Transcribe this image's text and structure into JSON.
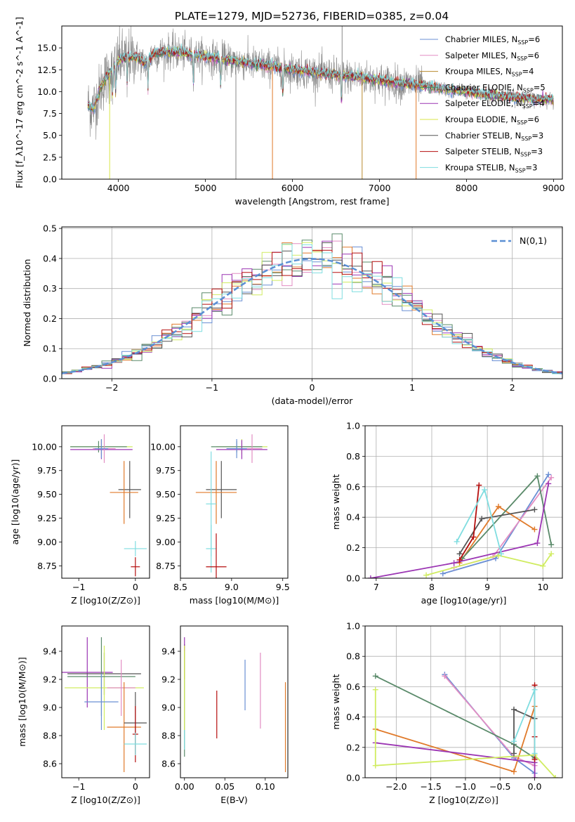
{
  "figure": {
    "title": "PLATE=1279, MJD=52736, FIBERID=0385, z=0.04"
  },
  "colors": {
    "legend_order": [
      "#6a8fd4",
      "#e28ec3",
      "#b8892e",
      "#3e8f63",
      "#9b35b3",
      "#d8e64a",
      "#555555",
      "#b50e0e",
      "#7fdde0"
    ],
    "data_grey": "#888888",
    "gauss": "#5b8fd4",
    "z_colors": [
      "#6a8fd4",
      "#e28ec3",
      "#e07a2a",
      "#5a8a6a",
      "#9b35b3",
      "#d0ec60",
      "#555555",
      "#b50e0e",
      "#7fdde0"
    ]
  },
  "chart_data": [
    {
      "id": "spectrum",
      "type": "line",
      "xlabel": "wavelength [Angstrom, rest frame]",
      "ylabel": "Flux [f_λ10^-17 erg cm^-2 s^-1 A^-1]",
      "xlim": [
        3350,
        9100
      ],
      "ylim": [
        0,
        17.5
      ],
      "xticks": [
        4000,
        5000,
        6000,
        7000,
        8000,
        9000
      ],
      "yticks": [
        0.0,
        2.5,
        5.0,
        7.5,
        10.0,
        12.5,
        15.0
      ],
      "legend_position": "top-right",
      "legend": [
        {
          "label": "Chabrier MILES, N_SSP=6",
          "color": "#6a8fd4"
        },
        {
          "label": "Salpeter MILES, N_SSP=6",
          "color": "#e28ec3"
        },
        {
          "label": "Kroupa MILES, N_SSP=4",
          "color": "#b8892e"
        },
        {
          "label": "Chabrier ELODIE, N_SSP=5",
          "color": "#3e8f63"
        },
        {
          "label": "Salpeter ELODIE, N_SSP=4",
          "color": "#9b35b3"
        },
        {
          "label": "Kroupa ELODIE, N_SSP=6",
          "color": "#d8e64a"
        },
        {
          "label": "Chabrier STELIB, N_SSP=3",
          "color": "#555555"
        },
        {
          "label": "Salpeter STELIB, N_SSP=3",
          "color": "#b50e0e"
        },
        {
          "label": "Kroupa STELIB, N_SSP=3",
          "color": "#7fdde0"
        }
      ],
      "continuum": {
        "x": [
          3650,
          3700,
          3750,
          3800,
          3850,
          3900,
          3950,
          4000,
          4100,
          4200,
          4300,
          4400,
          4600,
          4800,
          5000,
          5200,
          5400,
          5600,
          5800,
          6000,
          6200,
          6400,
          6600,
          6800,
          7000,
          7200,
          7400,
          7600,
          7800,
          8000,
          8200,
          8400,
          8600,
          8800,
          9000
        ],
        "y": [
          8.5,
          8.0,
          9.0,
          10.5,
          11.5,
          12.0,
          13.0,
          13.5,
          14.0,
          14.0,
          13.2,
          14.3,
          14.6,
          14.3,
          14.0,
          13.7,
          13.4,
          13.1,
          12.8,
          12.5,
          12.3,
          12.0,
          11.8,
          11.6,
          11.3,
          11.0,
          10.8,
          10.5,
          10.2,
          10.0,
          9.7,
          9.5,
          9.3,
          9.1,
          9.1
        ]
      },
      "spikes": [
        {
          "x": 3900,
          "y": 0.0,
          "color": "#d8e64a"
        },
        {
          "x": 5350,
          "y": 0.0,
          "color": "#888888"
        },
        {
          "x": 5770,
          "y": 0.0,
          "color": "#e07a2a"
        },
        {
          "x": 6800,
          "y": 0.0,
          "color": "#b8892e"
        },
        {
          "x": 7420,
          "y": 0.0,
          "color": "#e07a2a"
        },
        {
          "x": 6570,
          "y": 17.5,
          "color": "#888888"
        }
      ]
    },
    {
      "id": "residuals",
      "type": "histogram",
      "xlabel": "(data-model)/error",
      "ylabel": "Normed distribution",
      "xlim": [
        -2.5,
        2.5
      ],
      "ylim": [
        0,
        0.505
      ],
      "xticks": [
        -2,
        -1,
        0,
        1,
        2
      ],
      "yticks": [
        0.0,
        0.1,
        0.2,
        0.3,
        0.4,
        0.5
      ],
      "grid": true,
      "legend_position": "top-right",
      "legend": [
        {
          "label": "N(0,1)",
          "color": "#5b8fd4",
          "style": "dashed"
        }
      ],
      "bin_width": 0.1
    },
    {
      "id": "age_vs_Z",
      "type": "errorbar",
      "xlabel": "Z [log10(Z/Z⊙)]",
      "ylabel": "age  [log10(age/yr)]",
      "xlim": [
        -1.3,
        0.25
      ],
      "ylim": [
        8.62,
        10.22
      ],
      "xticks": [
        -1,
        0
      ],
      "yticks": [
        8.75,
        9.0,
        9.25,
        9.5,
        9.75,
        10.0
      ],
      "points": [
        {
          "x": -0.6,
          "y": 10.0,
          "xerr": 0.55,
          "yerr": 0.08,
          "color": "#d0ec60"
        },
        {
          "x": -0.65,
          "y": 10.0,
          "xerr": 0.5,
          "yerr": 0.06,
          "color": "#5a8a6a"
        },
        {
          "x": -0.6,
          "y": 9.97,
          "xerr": 0.55,
          "yerr": 0.1,
          "color": "#9b35b3"
        },
        {
          "x": -0.55,
          "y": 9.98,
          "xerr": 0.2,
          "yerr": 0.15,
          "color": "#e28ec3"
        },
        {
          "x": -0.1,
          "y": 9.55,
          "xerr": 0.2,
          "yerr": 0.3,
          "color": "#555555"
        },
        {
          "x": -0.2,
          "y": 9.52,
          "xerr": 0.25,
          "yerr": 0.33,
          "color": "#e07a2a"
        },
        {
          "x": -0.6,
          "y": 9.98,
          "xerr": 0.12,
          "yerr": 0.1,
          "color": "#6a8fd4"
        },
        {
          "x": 0.0,
          "y": 8.93,
          "xerr": 0.2,
          "yerr": 0.08,
          "color": "#7fdde0"
        },
        {
          "x": 0.0,
          "y": 8.74,
          "xerr": 0.08,
          "yerr": 0.1,
          "color": "#b50e0e"
        }
      ]
    },
    {
      "id": "age_vs_mass",
      "type": "errorbar",
      "xlabel": "mass [log10(M/M⊙)]",
      "ylabel": "",
      "xlim": [
        8.5,
        9.55
      ],
      "ylim": [
        8.62,
        10.22
      ],
      "xticks": [
        8.5,
        9.0,
        9.5
      ],
      "yticks": [
        8.75,
        9.0,
        9.25,
        9.5,
        9.75,
        10.0
      ],
      "points": [
        {
          "x": 9.1,
          "y": 10.0,
          "xerr": 0.25,
          "yerr": 0.08,
          "color": "#d0ec60"
        },
        {
          "x": 9.05,
          "y": 10.0,
          "xerr": 0.25,
          "yerr": 0.06,
          "color": "#5a8a6a"
        },
        {
          "x": 9.1,
          "y": 9.97,
          "xerr": 0.25,
          "yerr": 0.1,
          "color": "#9b35b3"
        },
        {
          "x": 9.2,
          "y": 9.98,
          "xerr": 0.1,
          "yerr": 0.15,
          "color": "#e28ec3"
        },
        {
          "x": 8.9,
          "y": 9.55,
          "xerr": 0.15,
          "yerr": 0.3,
          "color": "#555555"
        },
        {
          "x": 8.85,
          "y": 9.52,
          "xerr": 0.2,
          "yerr": 0.33,
          "color": "#e07a2a"
        },
        {
          "x": 9.05,
          "y": 9.98,
          "xerr": 0.1,
          "yerr": 0.1,
          "color": "#6a8fd4"
        },
        {
          "x": 8.8,
          "y": 9.4,
          "xerr": 0.05,
          "yerr": 0.55,
          "color": "#7fdde0"
        },
        {
          "x": 8.8,
          "y": 8.93,
          "xerr": 0.05,
          "yerr": 0.25,
          "color": "#7fdde0"
        },
        {
          "x": 8.85,
          "y": 8.74,
          "xerr": 0.1,
          "yerr": 0.35,
          "color": "#b50e0e"
        }
      ]
    },
    {
      "id": "mass_weight_vs_age",
      "type": "line",
      "xlabel": "age  [log10(age/yr)]",
      "ylabel": "mass weight",
      "xlim": [
        6.8,
        10.35
      ],
      "ylim": [
        0,
        1.0
      ],
      "xticks": [
        7,
        8,
        9,
        10
      ],
      "yticks": [
        0.0,
        0.2,
        0.4,
        0.6,
        0.8,
        1.0
      ],
      "grid": true,
      "series": [
        {
          "color": "#6a8fd4",
          "x": [
            8.2,
            9.15,
            10.1
          ],
          "y": [
            0.03,
            0.13,
            0.68
          ]
        },
        {
          "color": "#e28ec3",
          "x": [
            8.4,
            9.1,
            10.15
          ],
          "y": [
            0.07,
            0.14,
            0.66
          ]
        },
        {
          "color": "#e07a2a",
          "x": [
            8.5,
            9.2,
            9.85
          ],
          "y": [
            0.1,
            0.47,
            0.32
          ]
        },
        {
          "color": "#5a8a6a",
          "x": [
            8.55,
            9.9,
            10.15
          ],
          "y": [
            0.13,
            0.67,
            0.22
          ]
        },
        {
          "color": "#9b35b3",
          "x": [
            6.9,
            8.4,
            9.9,
            10.1
          ],
          "y": [
            0.0,
            0.1,
            0.23,
            0.62
          ]
        },
        {
          "color": "#d0ec60",
          "x": [
            7.9,
            9.2,
            10.0,
            10.15
          ],
          "y": [
            0.02,
            0.15,
            0.08,
            0.16
          ]
        },
        {
          "color": "#555555",
          "x": [
            8.5,
            8.9,
            9.85
          ],
          "y": [
            0.16,
            0.39,
            0.45
          ]
        },
        {
          "color": "#b50e0e",
          "x": [
            8.5,
            8.75,
            8.85
          ],
          "y": [
            0.12,
            0.27,
            0.61
          ]
        },
        {
          "color": "#7fdde0",
          "x": [
            8.45,
            8.95,
            9.25
          ],
          "y": [
            0.24,
            0.58,
            0.16
          ]
        }
      ]
    },
    {
      "id": "mass_vs_Z",
      "type": "errorbar",
      "xlabel": "Z [log10(Z/Z⊙)]",
      "ylabel": "mass [log10(M/M⊙)]",
      "xlim": [
        -1.3,
        0.25
      ],
      "ylim": [
        8.5,
        9.58
      ],
      "xticks": [
        -1,
        0
      ],
      "yticks": [
        8.6,
        8.8,
        9.0,
        9.2,
        9.4
      ],
      "points": [
        {
          "x": -0.85,
          "y": 9.25,
          "xerr": 0.45,
          "yerr": 0.25,
          "color": "#9b35b3"
        },
        {
          "x": -0.55,
          "y": 9.24,
          "xerr": 0.65,
          "yerr": 0.15,
          "color": "#555555"
        },
        {
          "x": -0.55,
          "y": 9.14,
          "xerr": 0.7,
          "yerr": 0.3,
          "color": "#d0ec60"
        },
        {
          "x": -0.6,
          "y": 9.22,
          "xerr": 0.6,
          "yerr": 0.28,
          "color": "#5a8a6a"
        },
        {
          "x": -0.6,
          "y": 9.04,
          "xerr": 0.3,
          "yerr": 0.2,
          "color": "#6a8fd4"
        },
        {
          "x": -0.25,
          "y": 9.14,
          "xerr": 0.25,
          "yerr": 0.2,
          "color": "#e28ec3"
        },
        {
          "x": -0.2,
          "y": 8.86,
          "xerr": 0.3,
          "yerr": 0.32,
          "color": "#e07a2a"
        },
        {
          "x": 0.0,
          "y": 8.89,
          "xerr": 0.2,
          "yerr": 0.22,
          "color": "#555555"
        },
        {
          "x": 0.0,
          "y": 8.81,
          "xerr": 0.05,
          "yerr": 0.2,
          "color": "#b50e0e"
        },
        {
          "x": 0.0,
          "y": 8.74,
          "xerr": 0.2,
          "yerr": 0.08,
          "color": "#7fdde0"
        }
      ]
    },
    {
      "id": "ebv",
      "type": "errorbar",
      "xlabel": "E(B-V)",
      "ylabel": "",
      "xlim": [
        -0.005,
        0.128
      ],
      "ylim": [
        8.5,
        9.58
      ],
      "xticks": [
        0.0,
        0.05,
        0.1
      ],
      "yticks": [
        8.6,
        8.8,
        9.0,
        9.2,
        9.4
      ],
      "points": [
        {
          "x": 0.0,
          "y": 9.25,
          "xerr": 0.0,
          "yerr": 0.2,
          "color": "#d0ec60"
        },
        {
          "x": 0.0,
          "y": 9.05,
          "xerr": 0.0,
          "yerr": 0.4,
          "color": "#5a8a6a"
        },
        {
          "x": 0.0,
          "y": 9.45,
          "xerr": 0.0,
          "yerr": 0.05,
          "color": "#9b35b3"
        },
        {
          "x": 0.0,
          "y": 8.95,
          "xerr": 0.0,
          "yerr": 0.25,
          "color": "#7fdde0"
        },
        {
          "x": 0.0,
          "y": 9.14,
          "xerr": 0.0,
          "yerr": 0.3,
          "color": "#d8e64a"
        },
        {
          "x": 0.04,
          "y": 8.95,
          "xerr": 0.0,
          "yerr": 0.17,
          "color": "#b50e0e"
        },
        {
          "x": 0.075,
          "y": 9.16,
          "xerr": 0.0,
          "yerr": 0.18,
          "color": "#6a8fd4"
        },
        {
          "x": 0.094,
          "y": 9.12,
          "xerr": 0.0,
          "yerr": 0.27,
          "color": "#e28ec3"
        },
        {
          "x": 0.125,
          "y": 8.86,
          "xerr": 0.0,
          "yerr": 0.32,
          "color": "#e07a2a"
        }
      ]
    },
    {
      "id": "mass_weight_vs_Z",
      "type": "line",
      "xlabel": "Z [log10(Z/Z⊙)]",
      "ylabel": "mass weight",
      "xlim": [
        -2.45,
        0.4
      ],
      "ylim": [
        0,
        1.0
      ],
      "xticks": [
        -2.0,
        -1.5,
        -1.0,
        -0.5,
        0.0
      ],
      "yticks": [
        0.0,
        0.2,
        0.4,
        0.6,
        0.8,
        1.0
      ],
      "grid": true,
      "series": [
        {
          "color": "#6a8fd4",
          "x": [
            -1.3,
            -0.3,
            0.0
          ],
          "y": [
            0.68,
            0.13,
            0.03
          ]
        },
        {
          "color": "#e28ec3",
          "x": [
            -1.3,
            -0.3,
            0.0
          ],
          "y": [
            0.67,
            0.14,
            0.08
          ]
        },
        {
          "color": "#e07a2a",
          "x": [
            -2.3,
            -0.3,
            0.0
          ],
          "y": [
            0.32,
            0.04,
            0.47
          ]
        },
        {
          "color": "#5a8a6a",
          "x": [
            -2.3,
            -0.3,
            0.0
          ],
          "y": [
            0.67,
            0.22,
            0.13
          ]
        },
        {
          "color": "#9b35b3",
          "x": [
            -2.3,
            0.0,
            0.0
          ],
          "y": [
            0.23,
            0.1,
            0.0
          ]
        },
        {
          "color": "#d0ec60",
          "x": [
            -2.3,
            -2.3,
            0.0,
            0.3
          ],
          "y": [
            0.58,
            0.08,
            0.15,
            0.0
          ]
        },
        {
          "color": "#555555",
          "x": [
            -0.3,
            -0.3,
            0.0
          ],
          "y": [
            0.16,
            0.45,
            0.39
          ]
        },
        {
          "color": "#b50e0e",
          "x": [
            0.0,
            0.0,
            0.0
          ],
          "y": [
            0.12,
            0.27,
            0.61
          ]
        },
        {
          "color": "#7fdde0",
          "x": [
            -0.3,
            0.0,
            0.0
          ],
          "y": [
            0.24,
            0.58,
            0.16
          ]
        }
      ]
    }
  ]
}
